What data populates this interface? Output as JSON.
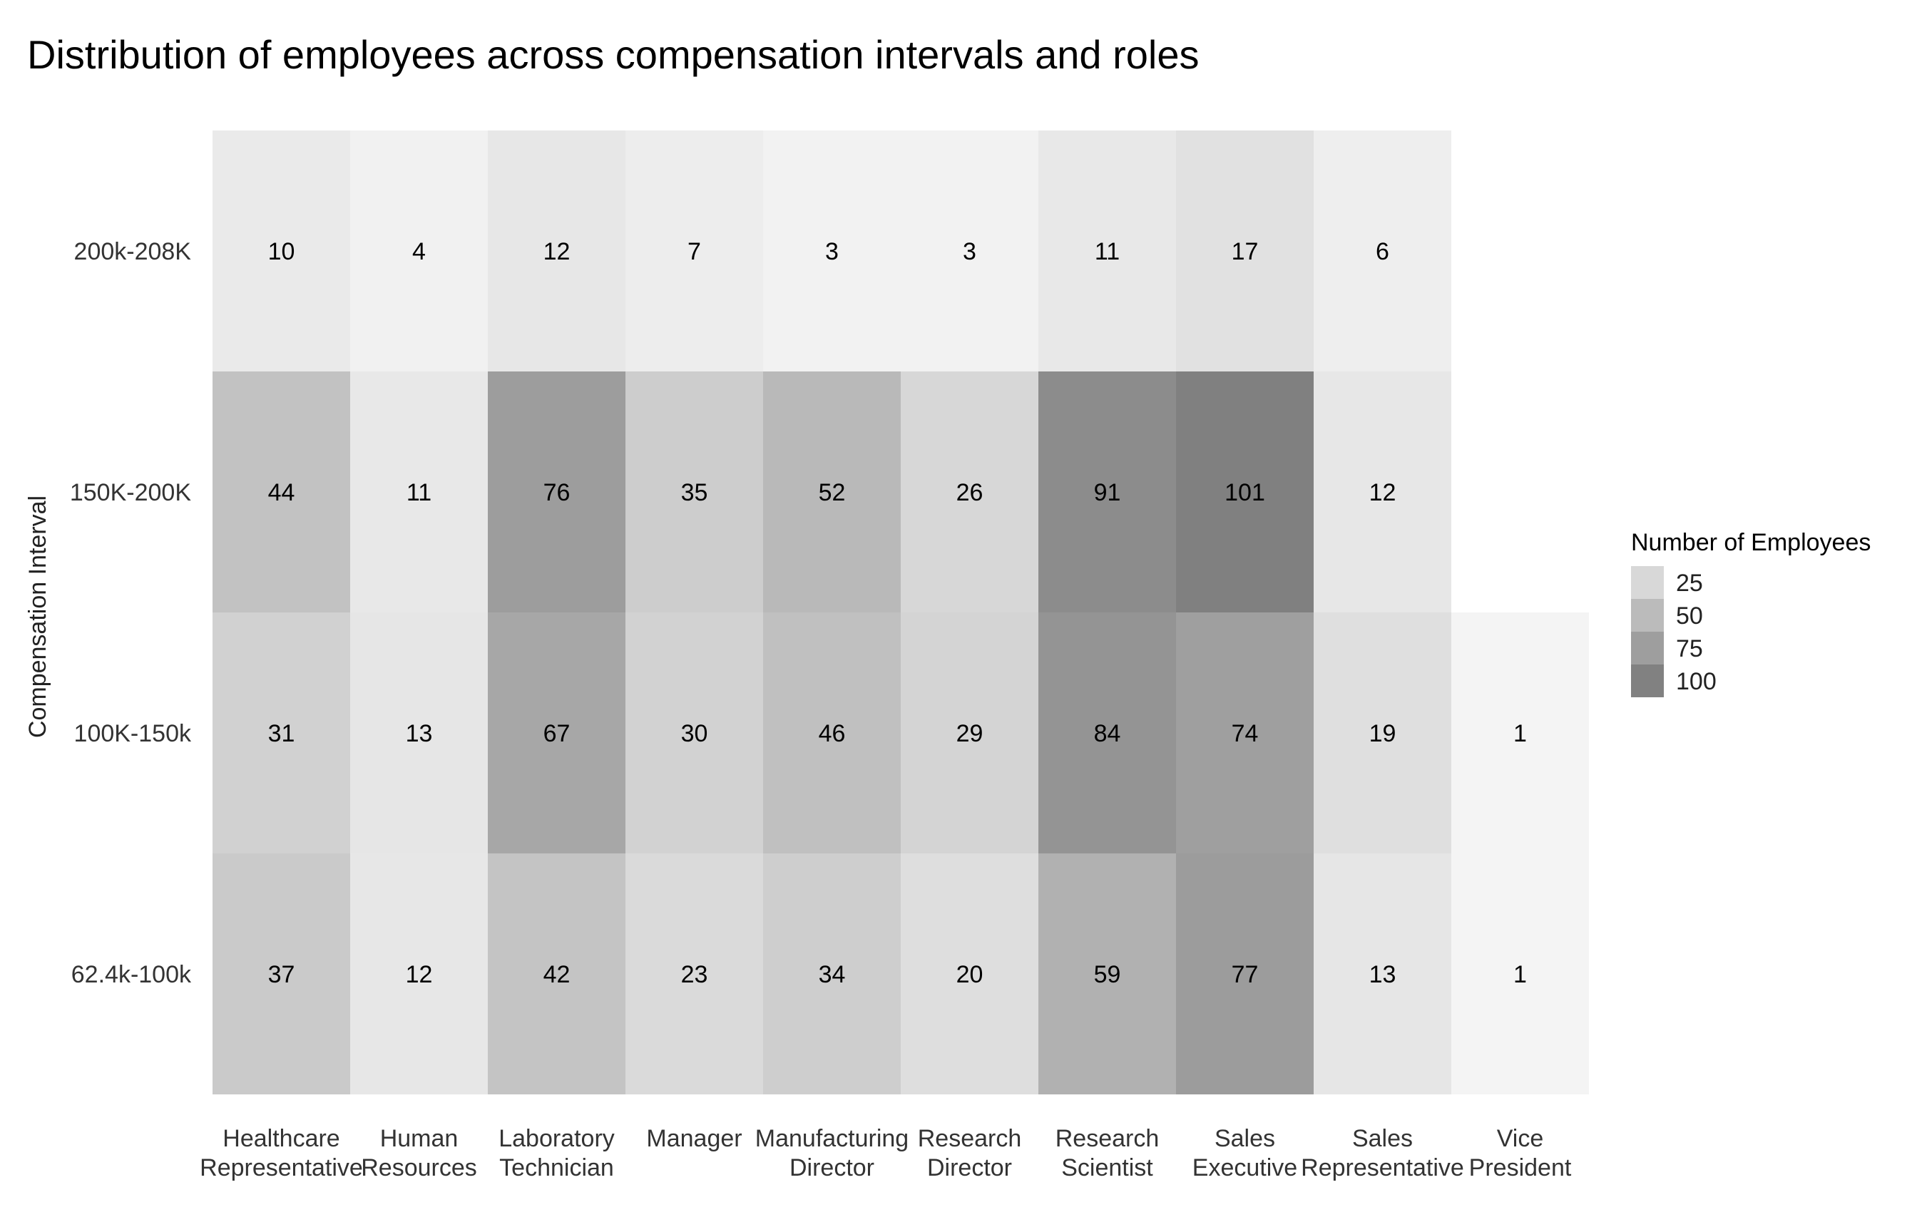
{
  "chart_data": {
    "type": "heatmap",
    "title": "Distribution of employees across compensation intervals and roles",
    "xlabel": "",
    "ylabel": "Compensation Interval",
    "x_categories": [
      [
        "Healthcare",
        "Representative"
      ],
      [
        "Human",
        "Resources"
      ],
      [
        "Laboratory",
        "Technician"
      ],
      [
        "Manager"
      ],
      [
        "Manufacturing",
        "Director"
      ],
      [
        "Research",
        "Director"
      ],
      [
        "Research",
        "Scientist"
      ],
      [
        "Sales",
        "Executive"
      ],
      [
        "Sales",
        "Representative"
      ],
      [
        "Vice",
        "President"
      ]
    ],
    "y_categories": [
      "200k-208K",
      "150K-200K",
      "100K-150k",
      "62.4k-100k"
    ],
    "values": [
      [
        10,
        4,
        12,
        7,
        3,
        3,
        11,
        17,
        6,
        null
      ],
      [
        44,
        11,
        76,
        35,
        52,
        26,
        91,
        101,
        12,
        null
      ],
      [
        31,
        13,
        67,
        30,
        46,
        29,
        84,
        74,
        19,
        1
      ],
      [
        37,
        12,
        42,
        23,
        34,
        20,
        59,
        77,
        13,
        1
      ]
    ],
    "legend": {
      "title": "Number of Employees",
      "breaks": [
        25,
        50,
        75,
        100
      ],
      "position": "right",
      "low_color": "#f4f4f4",
      "high_color": "#808080",
      "value_range": [
        1,
        101
      ]
    },
    "grid": false
  }
}
